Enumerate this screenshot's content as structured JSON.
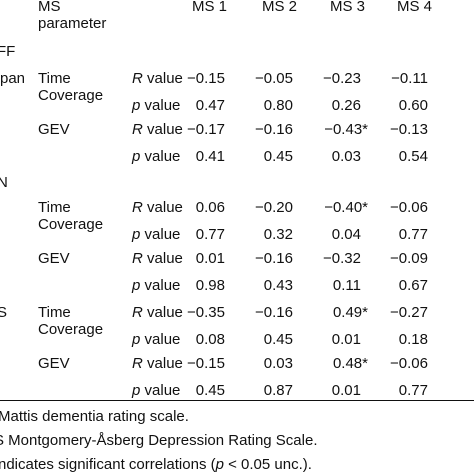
{
  "header": {
    "left_top": "MS",
    "left_bottom": "parameter",
    "cols": [
      "MS 1",
      "MS 2",
      "MS 3",
      "MS 4"
    ]
  },
  "groups": [
    {
      "label": "FF",
      "first": "pan"
    },
    {
      "label": "N"
    },
    {
      "label": "S"
    }
  ],
  "params": {
    "time_top": "Time",
    "time_bottom": "Coverage",
    "gev": "GEV"
  },
  "stats": {
    "r_prefix": "R",
    "r_suffix": "value",
    "p_prefix": "p",
    "p_suffix": "value"
  },
  "rows": [
    [
      "−0.15",
      "−0.05",
      "−0.23",
      "−0.11"
    ],
    [
      "0.47",
      "0.80",
      "0.26",
      "0.60"
    ],
    [
      "−0.17",
      "−0.16",
      "−0.43*",
      "−0.13"
    ],
    [
      "0.41",
      "0.45",
      "0.03",
      "0.54"
    ],
    [
      "0.06",
      "−0.20",
      "−0.40*",
      "−0.06"
    ],
    [
      "0.77",
      "0.32",
      "0.04",
      "0.77"
    ],
    [
      "0.01",
      "−0.16",
      "−0.32",
      "−0.09"
    ],
    [
      "0.98",
      "0.43",
      "0.11",
      "0.67"
    ],
    [
      "−0.35",
      "−0.16",
      "0.49*",
      "−0.27"
    ],
    [
      "0.08",
      "0.45",
      "0.01",
      "0.18"
    ],
    [
      "−0.15",
      "0.03",
      "0.48*",
      "−0.06"
    ],
    [
      "0.45",
      "0.87",
      "0.01",
      "0.77"
    ]
  ],
  "footnotes": {
    "f1": "Mattis dementia rating scale.",
    "f2": "S Montgomery-Åsberg Depression Rating Scale.",
    "f3_a": "ndicates significant correlations (",
    "f3_p": "p",
    "f3_b": " < 0.05 unc.)."
  }
}
